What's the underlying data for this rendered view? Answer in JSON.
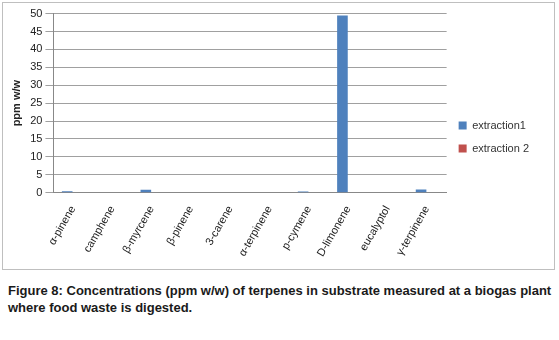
{
  "chart_data": {
    "type": "bar",
    "caption": "Figure 8: Concentrations (ppm w/w) of terpenes in substrate measured at a biogas plant where food waste is digested.",
    "y_label": "ppm w/w",
    "categories": [
      "α-pinene",
      "camphene",
      "β-myrcene",
      "β-pinene",
      "3-carene",
      "α-terpinene",
      "p-cymene",
      "D-limonene",
      "eucalyptol",
      "γ-terpinene"
    ],
    "series": [
      {
        "name": "extraction1",
        "color": "#4f81bd",
        "values": [
          0.4,
          0,
          0.8,
          0,
          0,
          0,
          0.3,
          49.5,
          0,
          0.9
        ]
      },
      {
        "name": "extraction 2",
        "color": "#c0504d",
        "values": [
          0,
          0,
          0,
          0,
          0,
          0,
          0,
          0,
          0,
          0
        ]
      }
    ],
    "ylim": [
      0,
      50
    ],
    "yticks": [
      0,
      5,
      10,
      15,
      20,
      25,
      30,
      35,
      40,
      45,
      50
    ],
    "grid": true,
    "legend": "right"
  }
}
